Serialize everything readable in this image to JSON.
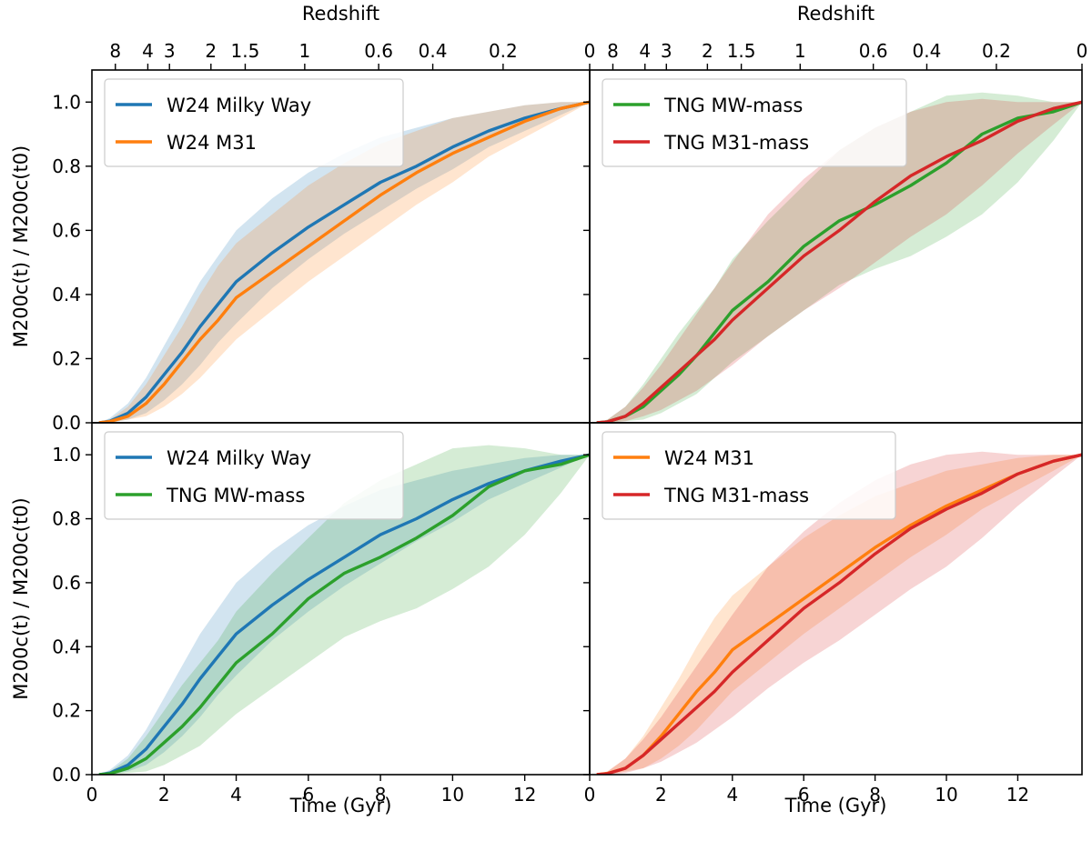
{
  "chart_data": {
    "type": "line",
    "time_unit": "Gyr",
    "x_label": "Time (Gyr)",
    "y_label": "M200c(t) / M200c(t0)",
    "top_axis_label": "Redshift",
    "xlim": [
      0,
      13.8
    ],
    "ylim": [
      0,
      1.1
    ],
    "x_ticks": [
      "0",
      "2",
      "4",
      "6",
      "8",
      "10",
      "12"
    ],
    "y_ticks": [
      "0.0",
      "0.2",
      "0.4",
      "0.6",
      "0.8",
      "1.0"
    ],
    "redshift_ticks": [
      {
        "label": "8",
        "time": 0.65
      },
      {
        "label": "4",
        "time": 1.55
      },
      {
        "label": "3",
        "time": 2.15
      },
      {
        "label": "2",
        "time": 3.3
      },
      {
        "label": "1.5",
        "time": 4.25
      },
      {
        "label": "1",
        "time": 5.9
      },
      {
        "label": "0.6",
        "time": 7.95
      },
      {
        "label": "0.4",
        "time": 9.45
      },
      {
        "label": "0.2",
        "time": 11.4
      },
      {
        "label": "0",
        "time": 13.8
      }
    ],
    "series_styles": {
      "W24 Milky Way": {
        "color": "#1f77b4",
        "band_alpha": 0.2
      },
      "W24 M31": {
        "color": "#ff7f0e",
        "band_alpha": 0.2
      },
      "TNG MW-mass": {
        "color": "#2ca02c",
        "band_alpha": 0.2
      },
      "TNG M31-mass": {
        "color": "#d62728",
        "band_alpha": 0.2
      }
    },
    "series": {
      "W24 Milky Way": {
        "t": [
          0.2,
          0.5,
          1.0,
          1.5,
          2.0,
          2.5,
          3.0,
          3.5,
          4.0,
          5.0,
          6.0,
          7.0,
          8.0,
          9.0,
          10.0,
          11.0,
          12.0,
          13.0,
          13.8
        ],
        "median": [
          0.0,
          0.005,
          0.03,
          0.08,
          0.15,
          0.22,
          0.3,
          0.37,
          0.44,
          0.53,
          0.61,
          0.68,
          0.75,
          0.8,
          0.86,
          0.91,
          0.95,
          0.98,
          1.0
        ],
        "low": [
          0.0,
          0.0,
          0.01,
          0.03,
          0.07,
          0.12,
          0.18,
          0.25,
          0.31,
          0.42,
          0.51,
          0.59,
          0.66,
          0.73,
          0.79,
          0.86,
          0.91,
          0.96,
          1.0
        ],
        "high": [
          0.0,
          0.015,
          0.06,
          0.14,
          0.24,
          0.34,
          0.44,
          0.52,
          0.6,
          0.7,
          0.78,
          0.84,
          0.89,
          0.92,
          0.95,
          0.97,
          0.99,
          1.0,
          1.0
        ]
      },
      "W24 M31": {
        "t": [
          0.2,
          0.5,
          1.0,
          1.5,
          2.0,
          2.5,
          3.0,
          3.5,
          4.0,
          5.0,
          6.0,
          7.0,
          8.0,
          9.0,
          10.0,
          11.0,
          12.0,
          13.0,
          13.8
        ],
        "median": [
          0.0,
          0.004,
          0.02,
          0.06,
          0.12,
          0.19,
          0.26,
          0.32,
          0.39,
          0.47,
          0.55,
          0.63,
          0.71,
          0.78,
          0.84,
          0.89,
          0.94,
          0.98,
          1.0
        ],
        "low": [
          0.0,
          0.0,
          0.01,
          0.02,
          0.05,
          0.09,
          0.14,
          0.2,
          0.26,
          0.35,
          0.44,
          0.52,
          0.6,
          0.68,
          0.75,
          0.83,
          0.89,
          0.95,
          1.0
        ],
        "high": [
          0.0,
          0.01,
          0.05,
          0.12,
          0.21,
          0.3,
          0.4,
          0.49,
          0.56,
          0.65,
          0.74,
          0.81,
          0.87,
          0.91,
          0.95,
          0.97,
          0.99,
          1.0,
          1.0
        ]
      },
      "TNG MW-mass": {
        "t": [
          0.2,
          0.5,
          1.0,
          1.5,
          2.0,
          2.5,
          3.0,
          3.5,
          4.0,
          5.0,
          6.0,
          7.0,
          8.0,
          9.0,
          10.0,
          11.0,
          12.0,
          13.0,
          13.8
        ],
        "median": [
          0.0,
          0.003,
          0.02,
          0.05,
          0.1,
          0.15,
          0.21,
          0.28,
          0.35,
          0.44,
          0.55,
          0.63,
          0.68,
          0.74,
          0.81,
          0.9,
          0.95,
          0.97,
          1.0
        ],
        "low": [
          0.0,
          0.0,
          0.005,
          0.01,
          0.03,
          0.06,
          0.09,
          0.14,
          0.19,
          0.27,
          0.35,
          0.43,
          0.48,
          0.52,
          0.58,
          0.65,
          0.75,
          0.88,
          1.0
        ],
        "high": [
          0.0,
          0.01,
          0.05,
          0.12,
          0.2,
          0.28,
          0.35,
          0.42,
          0.51,
          0.63,
          0.74,
          0.85,
          0.92,
          0.97,
          1.02,
          1.03,
          1.02,
          1.0,
          1.0
        ]
      },
      "TNG M31-mass": {
        "t": [
          0.2,
          0.5,
          1.0,
          1.5,
          2.0,
          2.5,
          3.0,
          3.5,
          4.0,
          5.0,
          6.0,
          7.0,
          8.0,
          9.0,
          10.0,
          11.0,
          12.0,
          13.0,
          13.8
        ],
        "median": [
          0.0,
          0.003,
          0.02,
          0.06,
          0.11,
          0.16,
          0.21,
          0.26,
          0.32,
          0.42,
          0.52,
          0.6,
          0.69,
          0.77,
          0.83,
          0.88,
          0.94,
          0.98,
          1.0
        ],
        "low": [
          0.0,
          0.0,
          0.005,
          0.02,
          0.04,
          0.07,
          0.1,
          0.14,
          0.18,
          0.27,
          0.35,
          0.42,
          0.5,
          0.58,
          0.65,
          0.74,
          0.84,
          0.93,
          1.0
        ],
        "high": [
          0.0,
          0.01,
          0.05,
          0.11,
          0.18,
          0.26,
          0.34,
          0.42,
          0.5,
          0.65,
          0.76,
          0.85,
          0.92,
          0.97,
          1.0,
          1.01,
          1.0,
          1.0,
          1.0
        ]
      }
    },
    "panels": [
      {
        "id": "top-left",
        "series": [
          "W24 Milky Way",
          "W24 M31"
        ],
        "legend": [
          "W24 Milky Way",
          "W24 M31"
        ]
      },
      {
        "id": "top-right",
        "series": [
          "TNG MW-mass",
          "TNG M31-mass"
        ],
        "legend": [
          "TNG MW-mass",
          "TNG M31-mass"
        ]
      },
      {
        "id": "bottom-left",
        "series": [
          "W24 Milky Way",
          "TNG MW-mass"
        ],
        "legend": [
          "W24 Milky Way",
          "TNG MW-mass"
        ]
      },
      {
        "id": "bottom-right",
        "series": [
          "W24 M31",
          "TNG M31-mass"
        ],
        "legend": [
          "W24 M31",
          "TNG M31-mass"
        ]
      }
    ]
  }
}
